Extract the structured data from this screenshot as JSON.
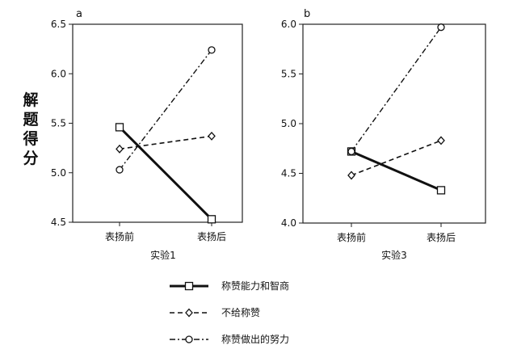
{
  "ylabel": "解题得分",
  "legend": [
    {
      "label": "称赞能力和智商"
    },
    {
      "label": "不给称赞"
    },
    {
      "label": "称赞做出的努力"
    }
  ],
  "chart_data": [
    {
      "type": "line",
      "panel": "a",
      "xlabel": "实验1",
      "categories": [
        "表扬前",
        "表扬后"
      ],
      "ylim": [
        4.5,
        6.5
      ],
      "yticks": [
        "4.5",
        "5.0",
        "5.5",
        "6.0",
        "6.5"
      ],
      "grid": false,
      "series": [
        {
          "name": "称赞能力和智商",
          "values": [
            5.46,
            4.53
          ],
          "style": "solid",
          "marker": "square"
        },
        {
          "name": "不给称赞",
          "values": [
            5.24,
            5.37
          ],
          "style": "dashed",
          "marker": "diamond"
        },
        {
          "name": "称赞做出的努力",
          "values": [
            5.03,
            6.24
          ],
          "style": "dashdot",
          "marker": "circle"
        }
      ]
    },
    {
      "type": "line",
      "panel": "b",
      "xlabel": "实验3",
      "categories": [
        "表扬前",
        "表扬后"
      ],
      "ylim": [
        4.0,
        6.0
      ],
      "yticks": [
        "4.0",
        "4.5",
        "5.0",
        "5.5",
        "6.0"
      ],
      "grid": false,
      "series": [
        {
          "name": "称赞能力和智商",
          "values": [
            4.72,
            4.33
          ],
          "style": "solid",
          "marker": "square"
        },
        {
          "name": "不给称赞",
          "values": [
            4.48,
            4.83
          ],
          "style": "dashed",
          "marker": "diamond"
        },
        {
          "name": "称赞做出的努力",
          "values": [
            4.72,
            5.97
          ],
          "style": "dashdot",
          "marker": "circle"
        }
      ]
    }
  ]
}
